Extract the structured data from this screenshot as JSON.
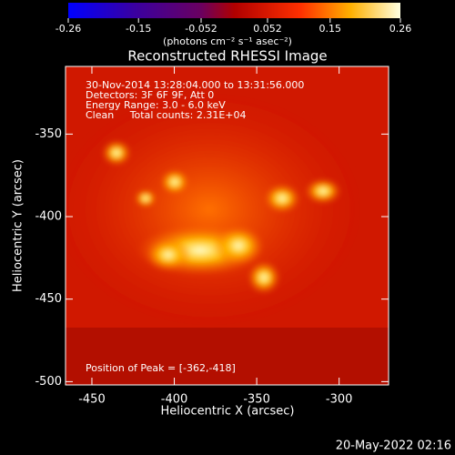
{
  "chart_data": {
    "type": "image",
    "title": "Reconstructed RHESSI Image",
    "x_label": "Heliocentric X (arcsec)",
    "y_label": "Heliocentric Y (arcsec)",
    "xlim": [
      -466,
      -270
    ],
    "xticks": [
      -450,
      -400,
      -350,
      -300
    ],
    "ylim": [
      -502,
      -309
    ],
    "yticks": [
      -500,
      -450,
      -400,
      -350
    ],
    "colorbar": {
      "label": "(photons cm⁻² s⁻¹ asec⁻²)",
      "clim": [
        -0.26,
        0.26
      ],
      "ticks": [
        -0.26,
        -0.15,
        -0.052,
        0.052,
        0.15,
        0.26
      ]
    },
    "annotations": [
      "30-Nov-2014 13:28:04.000 to 13:31:56.000",
      "Detectors: 3F 6F 9F, Att 0",
      "Energy Range: 3.0 - 6.0 keV",
      "Clean     Total counts: 2.31E+04"
    ],
    "peak_note": "Position of Peak = [-362,-418]",
    "timestamp": "20-May-2022 02:16"
  }
}
